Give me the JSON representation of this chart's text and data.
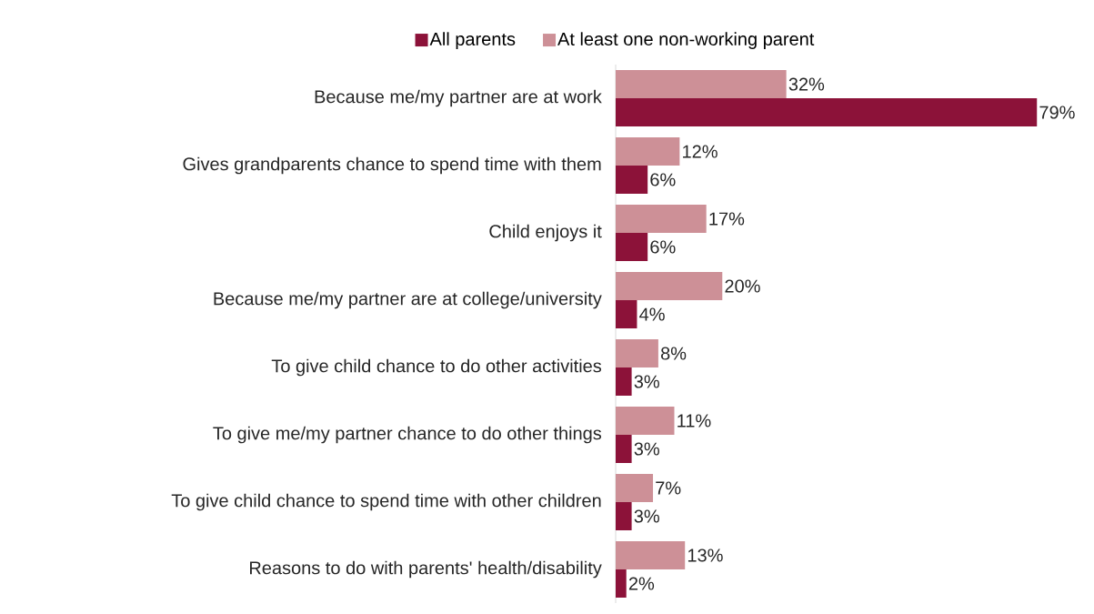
{
  "chart_data": {
    "type": "bar",
    "orientation": "horizontal",
    "legend": "top",
    "tick_labels": "y",
    "categories": [
      "Because me/my partner are at work",
      "Gives grandparents chance to spend time with them",
      "Child enjoys it",
      "Because me/my partner are at college/university",
      "To give child chance to do other activities",
      "To give me/my partner chance to do other things",
      "To give child chance to spend time with other children",
      "Reasons to do with parents' health/disability"
    ],
    "series": [
      {
        "name": "All parents",
        "color": "#8c1239",
        "values": [
          79,
          6,
          6,
          4,
          3,
          3,
          3,
          2
        ],
        "value_labels": [
          "79%",
          "6%",
          "6%",
          "4%",
          "3%",
          "3%",
          "3%",
          "2%"
        ]
      },
      {
        "name": "At least one non-working parent",
        "color": "#cd9097",
        "values": [
          32,
          12,
          17,
          20,
          8,
          11,
          7,
          13
        ],
        "value_labels": [
          "32%",
          "12%",
          "17%",
          "20%",
          "8%",
          "11%",
          "7%",
          "13%"
        ]
      }
    ]
  }
}
